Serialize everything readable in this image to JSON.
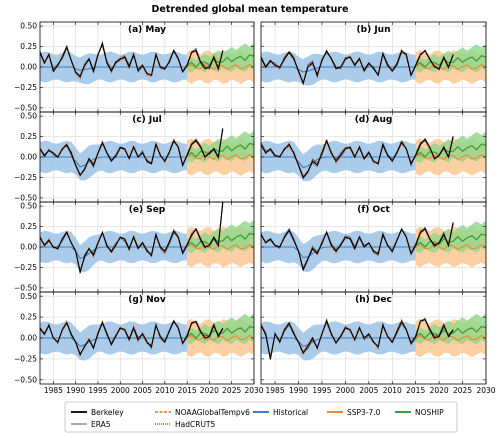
{
  "chart_data": {
    "type": "line",
    "title": "Detrended global mean temperature",
    "xlim": [
      1982,
      2030
    ],
    "ylim": [
      -0.55,
      0.55
    ],
    "xticks": [
      1985,
      1990,
      1995,
      2000,
      2005,
      2010,
      2015,
      2020,
      2025,
      2030
    ],
    "xtick_labels": [
      "1985",
      "1990",
      "1995",
      "2000",
      "2005",
      "2010",
      "2015",
      "2020",
      "2025",
      "2030"
    ],
    "yticks": [
      -0.5,
      -0.25,
      0.0,
      0.25,
      0.5
    ],
    "ytick_labels": [
      "−0.50",
      "−0.25",
      "0.00",
      "0.25",
      "0.50"
    ],
    "grid": true,
    "colors": {
      "berkeley": "#000000",
      "era5": "#555555",
      "noaa": "#e8731f",
      "hadcrut": "#c0522a",
      "historical": "#3b7fc4",
      "historical_band": "#9bc3e6",
      "ssp370": "#f08a2b",
      "ssp370_band": "#fbc48c",
      "noship": "#3aa337",
      "noship_band": "#8fd688"
    },
    "legend": {
      "placement": "bottom-center",
      "entries": [
        {
          "key": "berkeley",
          "label": "Berkeley",
          "style": "solid-thick"
        },
        {
          "key": "era5",
          "label": "ERA5",
          "style": "solid-thin"
        },
        {
          "key": "noaa",
          "label": "NOAAGlobalTempv6",
          "style": "dashed"
        },
        {
          "key": "hadcrut",
          "label": "HadCRUT5",
          "style": "dotted"
        },
        {
          "key": "historical",
          "label": "Historical",
          "style": "solid"
        },
        {
          "key": "ssp370",
          "label": "SSP3-7.0",
          "style": "solid"
        },
        {
          "key": "noship",
          "label": "NOSHIP",
          "style": "solid"
        }
      ]
    },
    "panels": [
      {
        "label": "(a) May",
        "obs": [
          0.18,
          0.05,
          0.15,
          -0.05,
          0.02,
          0.12,
          0.25,
          0.08,
          -0.06,
          -0.12,
          0.02,
          0.1,
          -0.05,
          0.15,
          0.28,
          0.05,
          -0.05,
          0.06,
          0.1,
          0.12,
          0.0,
          0.15,
          -0.04,
          0.02,
          -0.08,
          -0.1,
          0.15,
          0.0,
          -0.02,
          0.06,
          0.2,
          0.1,
          -0.06,
          0.02,
          0.18,
          0.2,
          0.06,
          -0.02,
          0.0,
          0.12,
          -0.02,
          0.2
        ],
        "hist_mean": [
          0.0,
          0.0,
          0.0,
          0.0,
          0.0,
          0.0,
          0.0,
          0.0,
          -0.02,
          -0.04,
          -0.03,
          -0.02,
          -0.01,
          0.0,
          0.0,
          0.0,
          0.0,
          0.0,
          0.0,
          0.0,
          0.0,
          0.0,
          0.0,
          0.0,
          0.0,
          0.0,
          0.0,
          0.0,
          0.0,
          0.0,
          0.0,
          0.0,
          0.0,
          0.0
        ],
        "hist_half": 0.17,
        "ssp_mean": 0.0,
        "ssp_half": 0.18,
        "noship_start": 0.02,
        "noship_end": 0.13,
        "noship_half": 0.16
      },
      {
        "label": "(b) Jun",
        "obs": [
          0.12,
          0.0,
          0.08,
          0.02,
          0.0,
          0.1,
          0.18,
          0.1,
          -0.05,
          -0.2,
          0.0,
          0.05,
          -0.1,
          0.08,
          0.2,
          0.1,
          -0.02,
          0.0,
          0.1,
          0.12,
          0.02,
          0.1,
          -0.04,
          0.05,
          -0.02,
          -0.1,
          0.16,
          0.02,
          -0.05,
          0.04,
          0.2,
          0.15,
          -0.1,
          0.02,
          0.15,
          0.2,
          0.1,
          0.0,
          -0.02,
          0.12,
          0.0,
          0.15
        ],
        "hist_mean": [
          0.0,
          0.0,
          0.0,
          0.0,
          0.0,
          0.0,
          0.0,
          0.0,
          -0.03,
          -0.06,
          -0.05,
          -0.03,
          -0.01,
          0.0,
          0.0,
          0.0,
          0.0,
          0.0,
          0.0,
          0.0,
          0.0,
          0.0,
          0.0,
          0.0,
          0.0,
          0.0,
          0.0,
          0.0,
          0.0,
          0.0,
          0.0,
          0.0,
          0.0,
          0.0
        ],
        "hist_half": 0.17,
        "ssp_mean": 0.0,
        "ssp_half": 0.18,
        "noship_start": 0.02,
        "noship_end": 0.12,
        "noship_half": 0.16
      },
      {
        "label": "(c) Jul",
        "obs": [
          0.1,
          0.02,
          0.08,
          0.05,
          0.0,
          0.1,
          0.15,
          0.05,
          -0.1,
          -0.22,
          -0.15,
          -0.02,
          -0.1,
          0.05,
          0.18,
          0.05,
          -0.05,
          0.02,
          0.12,
          0.1,
          -0.02,
          0.12,
          0.0,
          0.05,
          -0.05,
          -0.08,
          0.15,
          0.02,
          -0.05,
          0.06,
          0.2,
          0.12,
          -0.1,
          0.02,
          0.15,
          0.2,
          0.12,
          0.0,
          0.05,
          0.1,
          0.0,
          0.35
        ],
        "hist_mean": [
          0.0,
          0.0,
          0.0,
          0.0,
          0.0,
          0.0,
          0.0,
          0.0,
          -0.05,
          -0.12,
          -0.1,
          -0.06,
          -0.03,
          -0.01,
          0.0,
          0.0,
          0.0,
          0.0,
          0.0,
          0.0,
          0.0,
          0.0,
          0.0,
          0.0,
          0.0,
          0.0,
          0.0,
          0.0,
          0.0,
          0.0,
          0.0,
          0.0,
          0.0,
          0.0
        ],
        "hist_half": 0.18,
        "ssp_mean": 0.0,
        "ssp_half": 0.2,
        "noship_start": 0.02,
        "noship_end": 0.15,
        "noship_half": 0.17
      },
      {
        "label": "(d) Aug",
        "obs": [
          0.15,
          0.05,
          0.1,
          0.02,
          0.0,
          0.1,
          0.15,
          0.05,
          -0.1,
          -0.25,
          -0.18,
          -0.05,
          -0.1,
          0.05,
          0.2,
          0.05,
          -0.05,
          0.02,
          0.1,
          0.12,
          0.0,
          0.12,
          -0.02,
          0.05,
          -0.05,
          -0.08,
          0.15,
          0.02,
          -0.05,
          0.05,
          0.18,
          0.1,
          -0.08,
          0.02,
          0.15,
          0.22,
          0.12,
          -0.02,
          0.02,
          0.12,
          0.0,
          0.25
        ],
        "hist_mean": [
          0.0,
          0.0,
          0.0,
          0.0,
          0.0,
          0.0,
          0.0,
          0.0,
          -0.06,
          -0.13,
          -0.11,
          -0.07,
          -0.03,
          -0.01,
          0.0,
          0.0,
          0.0,
          0.0,
          0.0,
          0.0,
          0.0,
          0.0,
          0.0,
          0.0,
          0.0,
          0.0,
          0.0,
          0.0,
          0.0,
          0.0,
          0.0,
          0.0,
          0.0,
          0.0
        ],
        "hist_half": 0.18,
        "ssp_mean": 0.0,
        "ssp_half": 0.2,
        "noship_start": 0.02,
        "noship_end": 0.14,
        "noship_half": 0.17
      },
      {
        "label": "(e) Sep",
        "obs": [
          0.12,
          0.02,
          0.08,
          0.0,
          -0.02,
          0.1,
          0.18,
          0.05,
          -0.05,
          -0.3,
          -0.12,
          -0.02,
          -0.1,
          0.05,
          0.18,
          0.02,
          -0.06,
          0.02,
          0.12,
          0.1,
          -0.02,
          0.12,
          -0.02,
          0.05,
          -0.05,
          -0.1,
          0.15,
          0.0,
          -0.05,
          0.06,
          0.2,
          0.12,
          -0.08,
          0.02,
          0.15,
          0.22,
          0.1,
          0.0,
          0.02,
          0.12,
          0.02,
          0.55
        ],
        "hist_mean": [
          0.0,
          0.0,
          0.0,
          0.0,
          0.0,
          0.0,
          0.0,
          0.0,
          -0.05,
          -0.14,
          -0.12,
          -0.08,
          -0.04,
          -0.01,
          0.0,
          0.0,
          0.0,
          0.0,
          0.0,
          0.0,
          0.0,
          0.0,
          0.0,
          0.0,
          0.0,
          0.0,
          0.0,
          0.0,
          0.0,
          0.0,
          0.0,
          0.0,
          0.0,
          0.0
        ],
        "hist_half": 0.18,
        "ssp_mean": 0.0,
        "ssp_half": 0.22,
        "noship_start": 0.02,
        "noship_end": 0.15,
        "noship_half": 0.18
      },
      {
        "label": "(f) Oct",
        "obs": [
          0.15,
          0.05,
          0.1,
          0.02,
          0.0,
          0.12,
          0.2,
          0.08,
          -0.05,
          -0.28,
          -0.15,
          -0.02,
          -0.08,
          0.05,
          0.18,
          0.02,
          -0.05,
          0.02,
          0.12,
          0.1,
          -0.02,
          0.12,
          0.0,
          0.05,
          -0.05,
          -0.08,
          0.15,
          0.02,
          -0.05,
          0.08,
          0.22,
          0.12,
          -0.08,
          0.02,
          0.18,
          0.22,
          0.1,
          0.02,
          0.05,
          0.15,
          0.02,
          0.3
        ],
        "hist_mean": [
          0.0,
          0.0,
          0.0,
          0.0,
          0.0,
          0.0,
          0.0,
          0.0,
          -0.05,
          -0.13,
          -0.12,
          -0.08,
          -0.04,
          -0.01,
          0.0,
          0.0,
          0.0,
          0.0,
          0.0,
          0.0,
          0.0,
          0.0,
          0.0,
          0.0,
          0.0,
          0.0,
          0.0,
          0.0,
          0.0,
          0.0,
          0.0,
          0.0,
          0.0,
          0.0
        ],
        "hist_half": 0.18,
        "ssp_mean": 0.0,
        "ssp_half": 0.22,
        "noship_start": 0.02,
        "noship_end": 0.14,
        "noship_half": 0.18
      },
      {
        "label": "(g) Nov",
        "obs": [
          0.12,
          0.05,
          0.15,
          0.0,
          -0.05,
          0.1,
          0.18,
          0.05,
          -0.05,
          -0.2,
          -0.1,
          -0.02,
          -0.12,
          0.05,
          0.18,
          0.05,
          -0.08,
          0.02,
          0.12,
          0.1,
          -0.02,
          0.12,
          -0.02,
          0.05,
          -0.05,
          -0.1,
          0.15,
          0.02,
          -0.05,
          0.08,
          0.2,
          0.12,
          -0.06,
          0.02,
          0.18,
          0.2,
          0.08,
          0.0,
          0.02,
          0.15,
          0.02,
          0.12
        ],
        "hist_mean": [
          0.0,
          0.0,
          0.0,
          0.0,
          0.0,
          0.0,
          0.0,
          0.0,
          -0.04,
          -0.1,
          -0.08,
          -0.05,
          -0.02,
          0.0,
          0.0,
          0.0,
          0.0,
          0.0,
          0.0,
          0.0,
          0.0,
          0.0,
          0.0,
          0.0,
          0.0,
          0.0,
          0.0,
          0.0,
          0.0,
          0.0,
          0.0,
          0.0,
          0.0,
          0.0
        ],
        "hist_half": 0.18,
        "ssp_mean": 0.0,
        "ssp_half": 0.2,
        "noship_start": 0.02,
        "noship_end": 0.12,
        "noship_half": 0.17
      },
      {
        "label": "(h) Dec",
        "obs": [
          0.15,
          0.05,
          -0.25,
          0.05,
          -0.05,
          0.1,
          0.18,
          0.05,
          -0.05,
          -0.18,
          -0.1,
          0.0,
          -0.12,
          0.05,
          0.2,
          0.05,
          -0.06,
          0.02,
          0.12,
          0.1,
          -0.02,
          0.12,
          0.0,
          0.05,
          -0.05,
          -0.1,
          0.15,
          0.02,
          -0.05,
          0.08,
          0.2,
          0.1,
          -0.06,
          0.02,
          0.2,
          0.22,
          0.1,
          0.0,
          0.02,
          0.15,
          0.02,
          0.1
        ],
        "hist_mean": [
          0.0,
          0.0,
          0.0,
          0.0,
          0.0,
          0.0,
          0.0,
          0.0,
          -0.04,
          -0.1,
          -0.08,
          -0.05,
          -0.02,
          0.0,
          0.0,
          0.0,
          0.0,
          0.0,
          0.0,
          0.0,
          0.0,
          0.0,
          0.0,
          0.0,
          0.0,
          0.0,
          0.0,
          0.0,
          0.0,
          0.0,
          0.0,
          0.0,
          0.0,
          0.0
        ],
        "hist_half": 0.18,
        "ssp_mean": 0.0,
        "ssp_half": 0.2,
        "noship_start": 0.02,
        "noship_end": 0.12,
        "noship_half": 0.17
      }
    ],
    "obs_start_year": 1982,
    "hist_start_year": 1982,
    "hist_end_year": 2015,
    "scen_start_year": 2015,
    "scen_end_year": 2030
  }
}
